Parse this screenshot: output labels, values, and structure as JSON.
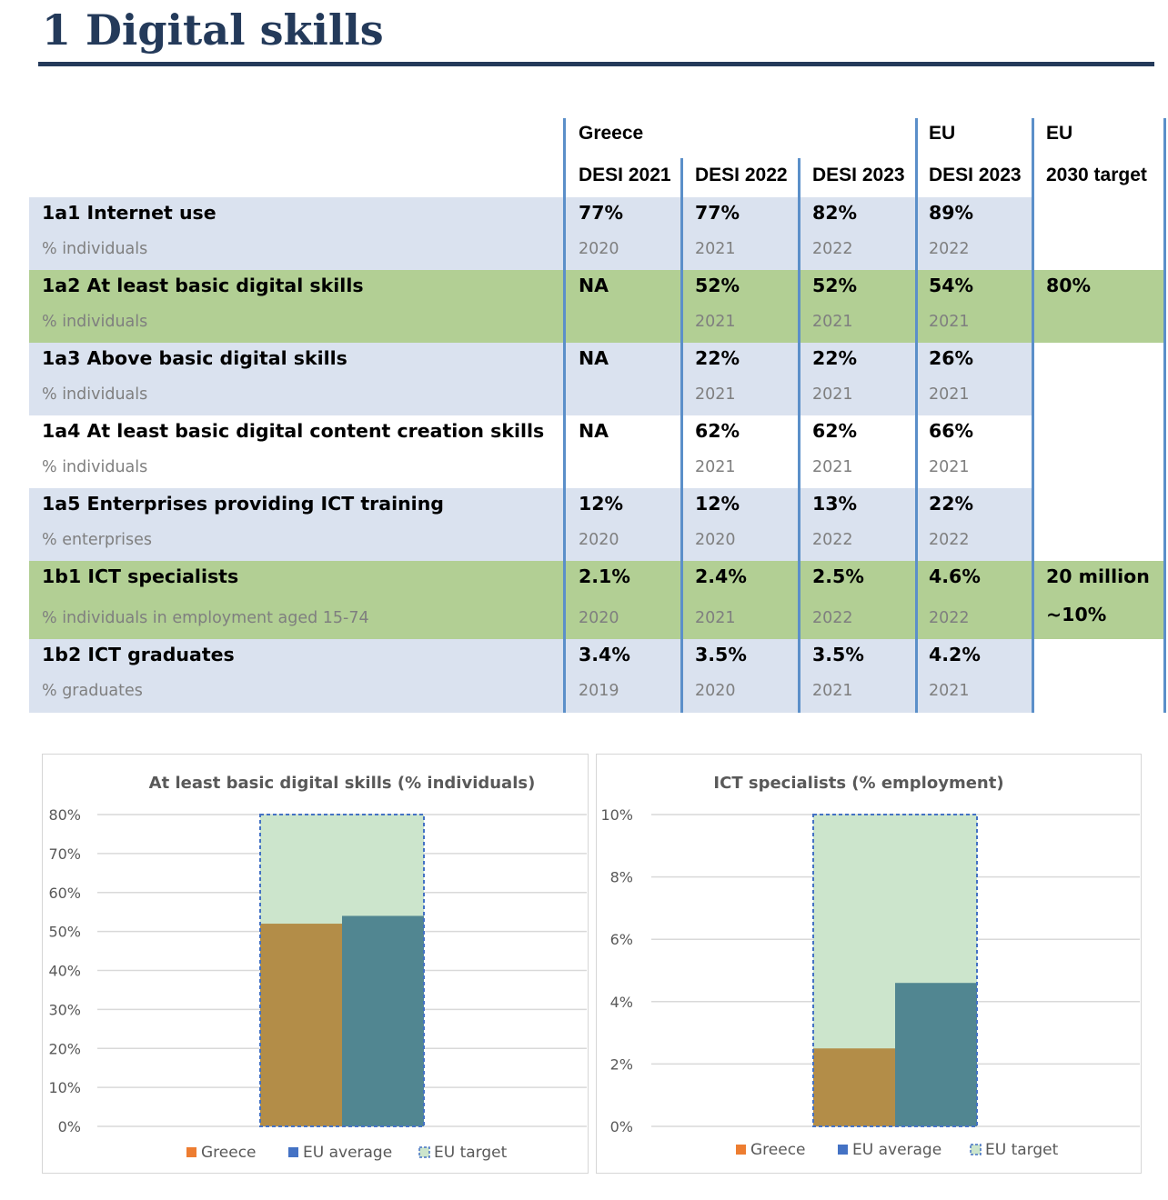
{
  "page": {
    "title": "1 Digital skills"
  },
  "table": {
    "group_headers": [
      "Greece",
      "EU",
      "EU"
    ],
    "column_headers": [
      "DESI 2021",
      "DESI 2022",
      "DESI 2023",
      "DESI 2023",
      "2030 target"
    ],
    "rows": [
      {
        "title": "1a1 Internet use",
        "unit": "% individuals",
        "highlight": false,
        "values": [
          "77%",
          "77%",
          "82%",
          "89%"
        ],
        "years": [
          "2020",
          "2021",
          "2022",
          "2022"
        ],
        "target": "",
        "target2": ""
      },
      {
        "title": "1a2 At least basic digital skills",
        "unit": "% individuals",
        "highlight": true,
        "values": [
          "NA",
          "52%",
          "52%",
          "54%"
        ],
        "years": [
          "",
          "2021",
          "2021",
          "2021"
        ],
        "target": "80%",
        "target2": ""
      },
      {
        "title": "1a3 Above basic digital skills",
        "unit": "% individuals",
        "highlight": false,
        "values": [
          "NA",
          "22%",
          "22%",
          "26%"
        ],
        "years": [
          "",
          "2021",
          "2021",
          "2021"
        ],
        "target": "",
        "target2": ""
      },
      {
        "title": "1a4 At least basic digital content creation skills",
        "unit": "% individuals",
        "highlight": false,
        "values": [
          "NA",
          "62%",
          "62%",
          "66%"
        ],
        "years": [
          "",
          "2021",
          "2021",
          "2021"
        ],
        "target": "",
        "target2": ""
      },
      {
        "title": "1a5 Enterprises providing ICT training",
        "unit": "% enterprises",
        "highlight": false,
        "values": [
          "12%",
          "12%",
          "13%",
          "22%"
        ],
        "years": [
          "2020",
          "2020",
          "2022",
          "2022"
        ],
        "target": "",
        "target2": ""
      },
      {
        "title": "1b1 ICT specialists",
        "unit": "% individuals in employment aged 15-74",
        "highlight": true,
        "values": [
          "2.1%",
          "2.4%",
          "2.5%",
          "4.6%"
        ],
        "years": [
          "2020",
          "2021",
          "2022",
          "2022"
        ],
        "target": "20 million",
        "target2": "~10%"
      },
      {
        "title": "1b2 ICT graduates",
        "unit": "% graduates",
        "highlight": false,
        "values": [
          "3.4%",
          "3.5%",
          "3.5%",
          "4.2%"
        ],
        "years": [
          "2019",
          "2020",
          "2021",
          "2021"
        ],
        "target": "",
        "target2": ""
      }
    ]
  },
  "colors": {
    "title": "#243a5a",
    "band_blue": "#dae2ef",
    "band_green": "#b2cf94",
    "greece": "#b38d48",
    "eu_average": "#518691",
    "eu_target_fill": "#cce5cc",
    "eu_target_border": "#4472c4",
    "legend_greece": "#ed7d31",
    "legend_eu_average": "#4472c4"
  },
  "chart_data": [
    {
      "type": "bar",
      "title": "At least basic digital skills (% individuals)",
      "series": [
        {
          "name": "Greece",
          "values": [
            52
          ]
        },
        {
          "name": "EU average",
          "values": [
            54
          ]
        },
        {
          "name": "EU target",
          "values": [
            80
          ]
        }
      ],
      "ylim": [
        0,
        80
      ],
      "yticks": [
        0,
        10,
        20,
        30,
        40,
        50,
        60,
        70,
        80
      ],
      "ytick_labels": [
        "0%",
        "10%",
        "20%",
        "30%",
        "40%",
        "50%",
        "60%",
        "70%",
        "80%"
      ],
      "legend": [
        "Greece",
        "EU average",
        "EU target"
      ],
      "legend_position": "bottom",
      "grid": true
    },
    {
      "type": "bar",
      "title": "ICT specialists (% employment)",
      "series": [
        {
          "name": "Greece",
          "values": [
            2.5
          ]
        },
        {
          "name": "EU average",
          "values": [
            4.6
          ]
        },
        {
          "name": "EU target",
          "values": [
            10
          ]
        }
      ],
      "ylim": [
        0,
        10
      ],
      "yticks": [
        0,
        2,
        4,
        6,
        8,
        10
      ],
      "ytick_labels": [
        "0%",
        "2%",
        "4%",
        "6%",
        "8%",
        "10%"
      ],
      "legend": [
        "Greece",
        "EU average",
        "EU target"
      ],
      "legend_position": "bottom",
      "grid": true
    }
  ]
}
